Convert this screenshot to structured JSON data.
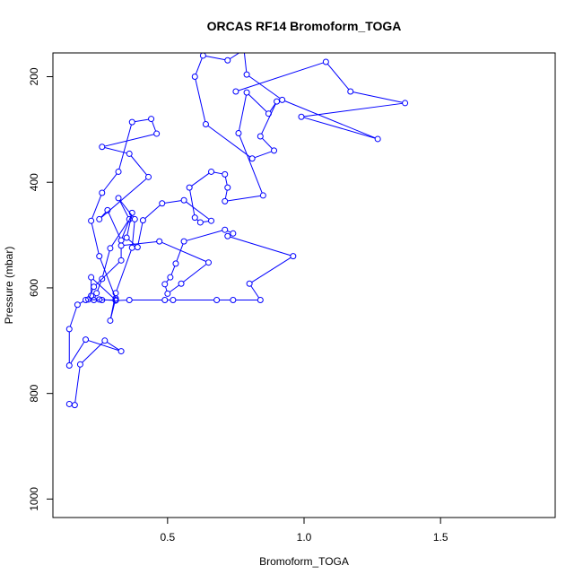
{
  "chart_data": {
    "type": "line",
    "title": "ORCAS RF14 Bromoform_TOGA",
    "xlabel": "Bromoform_TOGA",
    "ylabel": "Pressure (mbar)",
    "xlim": [
      0.08,
      1.92
    ],
    "ylim": [
      1035,
      155
    ],
    "y_reversed": true,
    "xticks": [
      0.5,
      1.0,
      1.5
    ],
    "xtick_labels": [
      "0.5",
      "1.0",
      "1.5"
    ],
    "yticks": [
      200,
      400,
      600,
      800,
      1000
    ],
    "ytick_labels": [
      "200",
      "400",
      "600",
      "800",
      "1000"
    ],
    "series_color": "#0000ff",
    "marker": "open-circle",
    "grid": false,
    "points": [
      [
        0.14,
        820
      ],
      [
        0.16,
        822
      ],
      [
        0.18,
        745
      ],
      [
        0.27,
        700
      ],
      [
        0.33,
        720
      ],
      [
        0.2,
        698
      ],
      [
        0.14,
        747
      ],
      [
        0.14,
        678
      ],
      [
        0.17,
        632
      ],
      [
        0.2,
        623
      ],
      [
        0.25,
        622
      ],
      [
        0.31,
        624
      ],
      [
        0.36,
        623
      ],
      [
        0.49,
        623
      ],
      [
        0.52,
        623
      ],
      [
        0.68,
        623
      ],
      [
        0.74,
        623
      ],
      [
        0.84,
        623
      ],
      [
        0.8,
        592
      ],
      [
        0.96,
        540
      ],
      [
        0.72,
        502
      ],
      [
        0.74,
        497
      ],
      [
        0.71,
        490
      ],
      [
        0.56,
        512
      ],
      [
        0.53,
        554
      ],
      [
        0.51,
        580
      ],
      [
        0.49,
        593
      ],
      [
        0.5,
        611
      ],
      [
        0.55,
        592
      ],
      [
        0.65,
        552
      ],
      [
        0.47,
        512
      ],
      [
        0.33,
        520
      ],
      [
        0.33,
        548
      ],
      [
        0.23,
        598
      ],
      [
        0.21,
        622
      ],
      [
        0.26,
        623
      ],
      [
        0.31,
        623
      ],
      [
        0.22,
        580
      ],
      [
        0.22,
        615
      ],
      [
        0.23,
        623
      ],
      [
        0.24,
        610
      ],
      [
        0.26,
        583
      ],
      [
        0.29,
        525
      ],
      [
        0.36,
        470
      ],
      [
        0.32,
        430
      ],
      [
        0.38,
        470
      ],
      [
        0.37,
        524
      ],
      [
        0.31,
        610
      ],
      [
        0.29,
        662
      ],
      [
        0.31,
        620
      ],
      [
        0.25,
        540
      ],
      [
        0.22,
        473
      ],
      [
        0.26,
        420
      ],
      [
        0.32,
        380
      ],
      [
        0.37,
        286
      ],
      [
        0.44,
        280
      ],
      [
        0.46,
        308
      ],
      [
        0.26,
        333
      ],
      [
        0.36,
        346
      ],
      [
        0.43,
        390
      ],
      [
        0.25,
        470
      ],
      [
        0.28,
        453
      ],
      [
        0.33,
        510
      ],
      [
        0.37,
        458
      ],
      [
        0.35,
        505
      ],
      [
        0.39,
        523
      ],
      [
        0.41,
        472
      ],
      [
        0.48,
        440
      ],
      [
        0.56,
        434
      ],
      [
        0.66,
        473
      ],
      [
        0.62,
        476
      ],
      [
        0.6,
        467
      ],
      [
        0.58,
        410
      ],
      [
        0.66,
        380
      ],
      [
        0.71,
        385
      ],
      [
        0.72,
        410
      ],
      [
        0.71,
        436
      ],
      [
        0.85,
        425
      ],
      [
        0.76,
        307
      ],
      [
        0.79,
        230
      ],
      [
        0.87,
        270
      ],
      [
        0.9,
        247
      ],
      [
        0.84,
        313
      ],
      [
        0.89,
        340
      ],
      [
        0.81,
        355
      ],
      [
        0.64,
        290
      ],
      [
        0.6,
        200
      ],
      [
        0.63,
        160
      ],
      [
        0.72,
        169
      ],
      [
        0.78,
        149
      ],
      [
        0.79,
        196
      ],
      [
        0.92,
        244
      ],
      [
        1.27,
        318
      ],
      [
        0.99,
        276
      ],
      [
        1.37,
        250
      ],
      [
        1.17,
        228
      ],
      [
        1.08,
        172
      ],
      [
        0.75,
        228
      ]
    ]
  }
}
